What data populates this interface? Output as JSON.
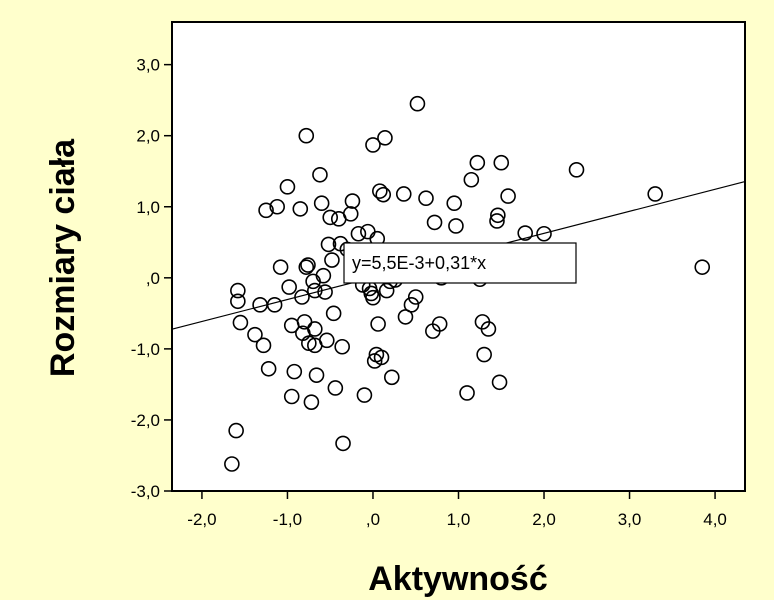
{
  "chart_data": {
    "type": "scatter",
    "xlabel": "Aktywność",
    "ylabel": "Rozmiary ciała",
    "xlim": [
      -2.35,
      4.35
    ],
    "ylim": [
      -3.0,
      3.6
    ],
    "x_ticks": [
      -2,
      -1,
      0,
      1,
      2,
      3,
      4
    ],
    "x_tick_labels": [
      "-2,0",
      "-1,0",
      ",0",
      "1,0",
      "2,0",
      "3,0",
      "4,0"
    ],
    "y_ticks": [
      -3,
      -2,
      -1,
      0,
      1,
      2,
      3
    ],
    "y_tick_labels": [
      "-3,0",
      "-2,0",
      "-1,0",
      ",0",
      "1,0",
      "2,0",
      "3,0"
    ],
    "grid": false,
    "background_color": "#ffffcc",
    "plot_background": "#ffffff",
    "fit_line": {
      "intercept": 0.0055,
      "slope": 0.31,
      "label": "y=5,5E-3+0,31*x"
    },
    "points": [
      {
        "x": -1.65,
        "y": -2.62
      },
      {
        "x": -1.6,
        "y": -2.15
      },
      {
        "x": -1.58,
        "y": -0.18
      },
      {
        "x": -1.58,
        "y": -0.33
      },
      {
        "x": -1.55,
        "y": -0.63
      },
      {
        "x": -1.38,
        "y": -0.8
      },
      {
        "x": -1.32,
        "y": -0.38
      },
      {
        "x": -1.28,
        "y": -0.95
      },
      {
        "x": -1.25,
        "y": 0.95
      },
      {
        "x": -1.22,
        "y": -1.28
      },
      {
        "x": -1.15,
        "y": -0.38
      },
      {
        "x": -1.12,
        "y": 1.0
      },
      {
        "x": -1.08,
        "y": 0.15
      },
      {
        "x": -1.0,
        "y": 1.28
      },
      {
        "x": -0.98,
        "y": -0.13
      },
      {
        "x": -0.95,
        "y": -0.67
      },
      {
        "x": -0.95,
        "y": -1.67
      },
      {
        "x": -0.92,
        "y": -1.32
      },
      {
        "x": -0.85,
        "y": 0.97
      },
      {
        "x": -0.83,
        "y": -0.27
      },
      {
        "x": -0.82,
        "y": -0.78
      },
      {
        "x": -0.8,
        "y": -0.62
      },
      {
        "x": -0.78,
        "y": 2.0
      },
      {
        "x": -0.78,
        "y": 0.15
      },
      {
        "x": -0.76,
        "y": 0.18
      },
      {
        "x": -0.75,
        "y": -0.92
      },
      {
        "x": -0.72,
        "y": -1.75
      },
      {
        "x": -0.7,
        "y": -0.05
      },
      {
        "x": -0.68,
        "y": -0.18
      },
      {
        "x": -0.68,
        "y": -0.72
      },
      {
        "x": -0.68,
        "y": -0.95
      },
      {
        "x": -0.66,
        "y": -1.37
      },
      {
        "x": -0.62,
        "y": 1.45
      },
      {
        "x": -0.6,
        "y": 1.05
      },
      {
        "x": -0.58,
        "y": 0.03
      },
      {
        "x": -0.56,
        "y": -0.2
      },
      {
        "x": -0.54,
        "y": -0.88
      },
      {
        "x": -0.52,
        "y": 0.47
      },
      {
        "x": -0.5,
        "y": 0.85
      },
      {
        "x": -0.48,
        "y": 0.25
      },
      {
        "x": -0.46,
        "y": -0.5
      },
      {
        "x": -0.44,
        "y": -1.55
      },
      {
        "x": -0.4,
        "y": 0.83
      },
      {
        "x": -0.38,
        "y": 0.48
      },
      {
        "x": -0.36,
        "y": -0.97
      },
      {
        "x": -0.35,
        "y": -2.33
      },
      {
        "x": -0.3,
        "y": 0.4
      },
      {
        "x": -0.26,
        "y": 0.9
      },
      {
        "x": -0.24,
        "y": 1.08
      },
      {
        "x": -0.2,
        "y": 0.3
      },
      {
        "x": -0.17,
        "y": 0.62
      },
      {
        "x": -0.12,
        "y": -0.1
      },
      {
        "x": -0.1,
        "y": -1.65
      },
      {
        "x": -0.06,
        "y": 0.65
      },
      {
        "x": -0.04,
        "y": -0.15
      },
      {
        "x": -0.02,
        "y": -0.22
      },
      {
        "x": 0.0,
        "y": 1.87
      },
      {
        "x": 0.0,
        "y": -0.28
      },
      {
        "x": 0.02,
        "y": -1.17
      },
      {
        "x": 0.04,
        "y": -1.08
      },
      {
        "x": 0.05,
        "y": 0.55
      },
      {
        "x": 0.06,
        "y": -0.65
      },
      {
        "x": 0.08,
        "y": 1.22
      },
      {
        "x": 0.1,
        "y": -1.12
      },
      {
        "x": 0.12,
        "y": 1.17
      },
      {
        "x": 0.14,
        "y": 1.97
      },
      {
        "x": 0.16,
        "y": -0.18
      },
      {
        "x": 0.2,
        "y": -0.05
      },
      {
        "x": 0.22,
        "y": -1.4
      },
      {
        "x": 0.26,
        "y": -0.03
      },
      {
        "x": 0.36,
        "y": 1.18
      },
      {
        "x": 0.38,
        "y": -0.55
      },
      {
        "x": 0.45,
        "y": -0.38
      },
      {
        "x": 0.5,
        "y": -0.27
      },
      {
        "x": 0.52,
        "y": 2.45
      },
      {
        "x": 0.62,
        "y": 1.12
      },
      {
        "x": 0.7,
        "y": -0.75
      },
      {
        "x": 0.72,
        "y": 0.78
      },
      {
        "x": 0.78,
        "y": -0.65
      },
      {
        "x": 0.8,
        "y": 0.0
      },
      {
        "x": 0.95,
        "y": 1.05
      },
      {
        "x": 0.97,
        "y": 0.73
      },
      {
        "x": 1.1,
        "y": -1.62
      },
      {
        "x": 1.15,
        "y": 1.38
      },
      {
        "x": 1.22,
        "y": 1.62
      },
      {
        "x": 1.25,
        "y": -0.02
      },
      {
        "x": 1.28,
        "y": -0.62
      },
      {
        "x": 1.3,
        "y": -1.08
      },
      {
        "x": 1.35,
        "y": -0.72
      },
      {
        "x": 1.45,
        "y": 0.8
      },
      {
        "x": 1.46,
        "y": 0.88
      },
      {
        "x": 1.48,
        "y": -1.47
      },
      {
        "x": 1.5,
        "y": 1.62
      },
      {
        "x": 1.58,
        "y": 1.15
      },
      {
        "x": 1.78,
        "y": 0.63
      },
      {
        "x": 2.0,
        "y": 0.62
      },
      {
        "x": 2.38,
        "y": 1.52
      },
      {
        "x": 3.3,
        "y": 1.18
      },
      {
        "x": 3.85,
        "y": 0.15
      }
    ]
  }
}
